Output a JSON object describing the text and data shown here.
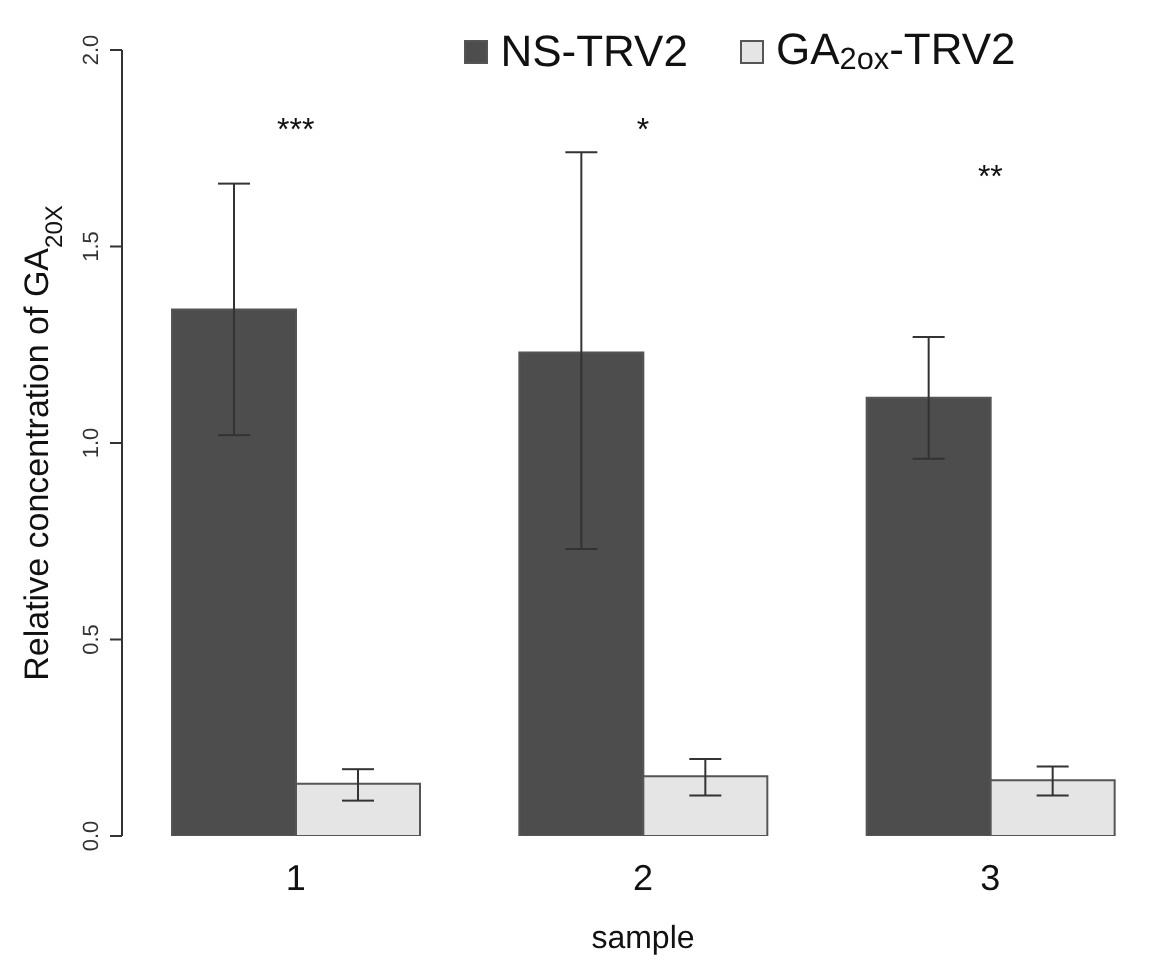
{
  "chart_data": {
    "type": "bar",
    "xlabel": "sample",
    "ylabel": "Relative concentration of GA$_{20X}$",
    "categories": [
      "1",
      "2",
      "3"
    ],
    "series": [
      {
        "name": "NS-TRV2",
        "color": "#4d4d4d",
        "values": [
          1.34,
          1.23,
          1.115
        ],
        "errors": [
          [
            1.02,
            1.66
          ],
          [
            0.73,
            1.74
          ],
          [
            0.96,
            1.27
          ]
        ]
      },
      {
        "name": "GA$_{2ox}$-TRV2",
        "color": "#e5e5e5",
        "values": [
          0.133,
          0.152,
          0.142
        ],
        "errors": [
          [
            0.09,
            0.17
          ],
          [
            0.103,
            0.196
          ],
          [
            0.103,
            0.177
          ]
        ]
      }
    ],
    "ylim": [
      0,
      2
    ],
    "yticks": [
      {
        "value": 0,
        "label": "0.0"
      },
      0.5,
      {
        "value": 1,
        "label": "1.0"
      },
      1.5,
      {
        "value": 2,
        "label": "2.0"
      }
    ],
    "legend": "top",
    "annotations": [
      "***",
      "*",
      "**"
    ]
  }
}
